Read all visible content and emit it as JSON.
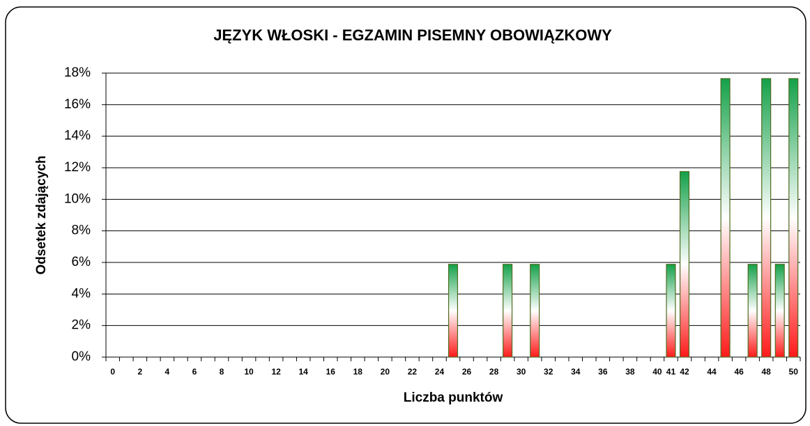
{
  "chart_data": {
    "type": "bar",
    "title": "JĘZYK WŁOSKI - EGZAMIN PISEMNY OBOWIĄZKOWY",
    "x_label": "Liczba punktów",
    "y_label": "Odsetek zdających",
    "categories": [
      "0",
      null,
      "2",
      null,
      "4",
      null,
      "6",
      null,
      "8",
      null,
      "10",
      null,
      "12",
      null,
      "14",
      null,
      "16",
      null,
      "18",
      null,
      "20",
      null,
      "22",
      null,
      "24",
      null,
      "26",
      null,
      "28",
      null,
      "30",
      null,
      "32",
      null,
      "34",
      null,
      "36",
      null,
      "38",
      null,
      "40",
      "41",
      "42",
      null,
      "44",
      null,
      "46",
      null,
      "48",
      null,
      "50"
    ],
    "values": [
      0,
      0,
      0,
      0,
      0,
      0,
      0,
      0,
      0,
      0,
      0,
      0,
      0,
      0,
      0,
      0,
      0,
      0,
      0,
      0,
      0,
      0,
      0,
      0,
      0,
      5.88,
      0,
      0,
      0,
      5.88,
      0,
      5.88,
      0,
      0,
      0,
      0,
      0,
      0,
      0,
      0,
      0,
      5.88,
      11.76,
      0,
      0,
      17.65,
      0,
      5.88,
      17.65,
      5.88,
      17.65
    ],
    "gradient_colors": [
      "#14a049",
      "#ffffff",
      "#ff1a1a"
    ],
    "bar_edge_color": "#4d6b1f",
    "ylim": [
      0,
      18
    ],
    "yticks": [
      {
        "value": 0,
        "label": "0%"
      },
      {
        "value": 2,
        "label": "2%"
      },
      {
        "value": 4,
        "label": "4%"
      },
      {
        "value": 6,
        "label": "6%"
      },
      {
        "value": 8,
        "label": "8%"
      },
      {
        "value": 10,
        "label": "10%"
      },
      {
        "value": 12,
        "label": "12%"
      },
      {
        "value": 14,
        "label": "14%"
      },
      {
        "value": 16,
        "label": "16%"
      },
      {
        "value": 18,
        "label": "18%"
      }
    ],
    "grid": true
  }
}
